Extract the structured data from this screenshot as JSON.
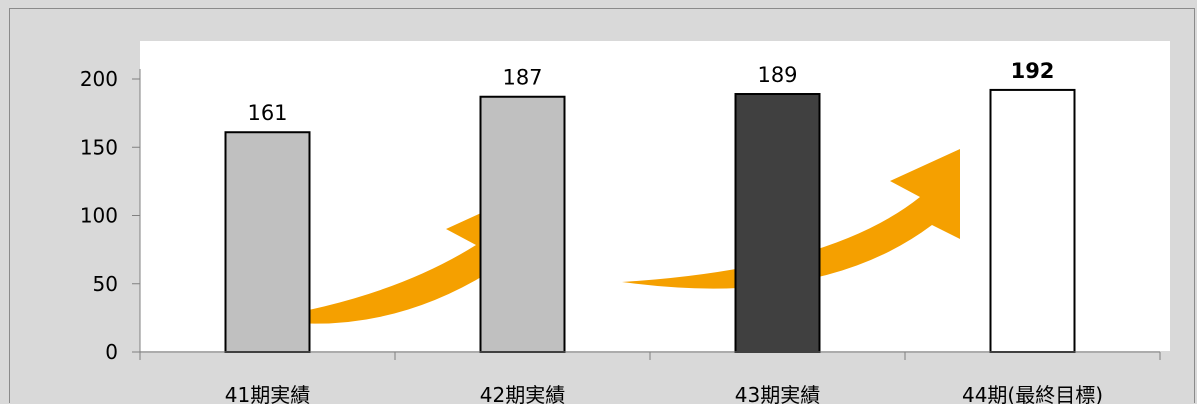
{
  "chart_data": {
    "type": "bar",
    "categories": [
      "41期実績",
      "42期実績",
      "43期実績",
      "44期(最終目標)"
    ],
    "values": [
      161,
      187,
      189,
      192
    ],
    "data_labels": [
      "161",
      "187",
      "189",
      "192"
    ],
    "bar_colors": [
      "#c0c0c0",
      "#c0c0c0",
      "#404040",
      "#ffffff"
    ],
    "bar_stroke": "#000000",
    "bold_labels": [
      false,
      false,
      false,
      true
    ],
    "ylim": [
      0,
      200
    ],
    "yticks": [
      0,
      50,
      100,
      150,
      200
    ],
    "ytick_labels": [
      "0",
      "50",
      "100",
      "150",
      "200"
    ],
    "title": "",
    "xlabel": "",
    "ylabel": "",
    "grid": false,
    "plot_background": "#ffffff",
    "frame_background": "#d9d9d9",
    "arrow_color": "#f5a000"
  }
}
